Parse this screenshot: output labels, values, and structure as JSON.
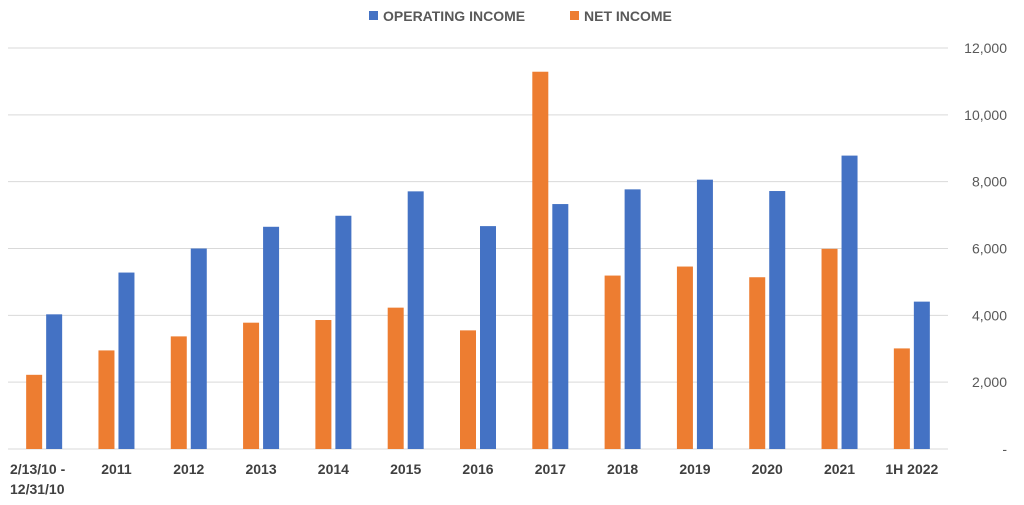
{
  "chart_data": {
    "type": "bar",
    "title": "",
    "xlabel": "",
    "ylabel": "",
    "categories": [
      [
        "2/13/10 -",
        "12/31/10"
      ],
      [
        "2011"
      ],
      [
        "2012"
      ],
      [
        "2013"
      ],
      [
        "2014"
      ],
      [
        "2015"
      ],
      [
        "2016"
      ],
      [
        "2017"
      ],
      [
        "2018"
      ],
      [
        "2019"
      ],
      [
        "2020"
      ],
      [
        "2021"
      ],
      [
        "1H 2022"
      ]
    ],
    "series": [
      {
        "name": "NET INCOME",
        "color": "#ED7D31",
        "values": [
          2220,
          2950,
          3370,
          3780,
          3860,
          4230,
          3550,
          11290,
          5190,
          5460,
          5140,
          5990,
          3010
        ]
      },
      {
        "name": "OPERATING INCOME",
        "color": "#4472C4",
        "values": [
          4030,
          5280,
          6000,
          6650,
          6980,
          7710,
          6670,
          7330,
          7770,
          8060,
          7720,
          8780,
          4410
        ]
      }
    ],
    "legend_order": [
      1,
      0
    ],
    "legend_position": "top-center",
    "ylim": [
      0,
      12000
    ],
    "y_ticks": [
      {
        "value": 0,
        "label": "-"
      },
      {
        "value": 2000,
        "label": "2,000"
      },
      {
        "value": 4000,
        "label": "4,000"
      },
      {
        "value": 6000,
        "label": "6,000"
      },
      {
        "value": 8000,
        "label": "8,000"
      },
      {
        "value": 10000,
        "label": "10,000"
      },
      {
        "value": 12000,
        "label": "12,000"
      }
    ],
    "y_axis_side": "right",
    "grid": true,
    "grid_color": "#D9D9D9"
  }
}
